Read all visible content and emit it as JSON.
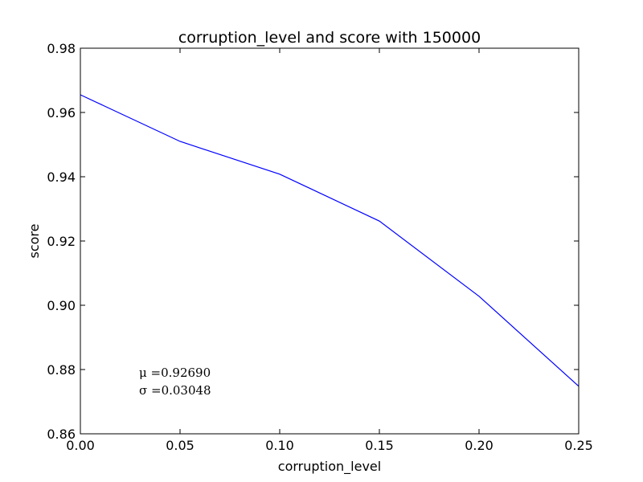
{
  "chart_data": {
    "type": "line",
    "title": "corruption_level and score with 150000",
    "xlabel": "corruption_level",
    "ylabel": "score",
    "xlim": [
      0.0,
      0.25
    ],
    "ylim": [
      0.86,
      0.98
    ],
    "x_ticks": [
      "0.00",
      "0.05",
      "0.10",
      "0.15",
      "0.20",
      "0.25"
    ],
    "y_ticks": [
      "0.86",
      "0.88",
      "0.90",
      "0.92",
      "0.94",
      "0.96",
      "0.98"
    ],
    "grid": false,
    "series": [
      {
        "color": "#0000ff",
        "x": [
          0.0,
          0.05,
          0.1,
          0.15,
          0.2,
          0.25
        ],
        "y": [
          0.9655,
          0.951,
          0.9408,
          0.9262,
          0.9028,
          0.8748
        ]
      }
    ],
    "annotations": [
      "μ =0.92690",
      "σ =0.03048"
    ]
  }
}
